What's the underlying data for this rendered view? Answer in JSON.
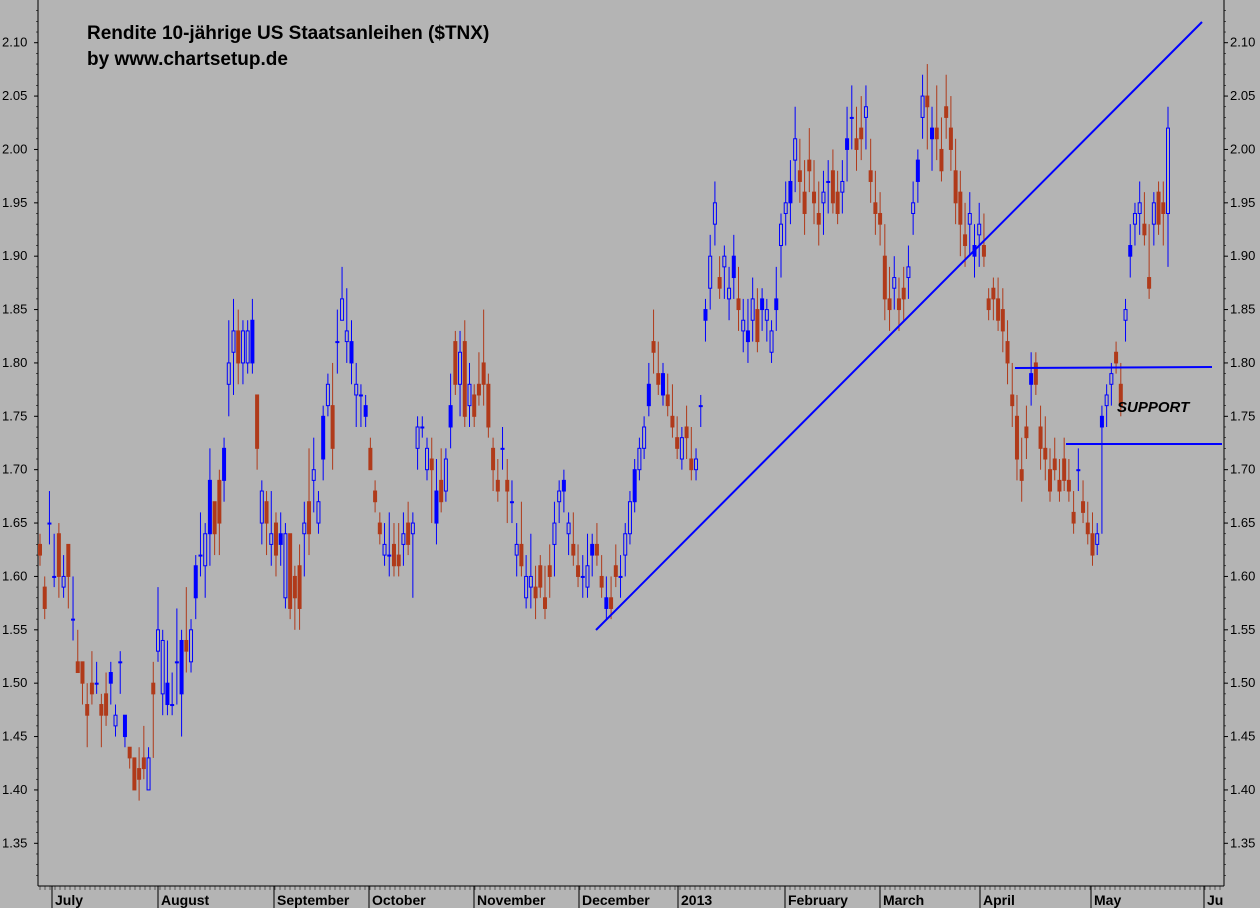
{
  "chart_data": {
    "type": "candlestick",
    "title": "Rendite 10-jährige US Staatsanleihen  ($TNX)",
    "subtitle": "by www.chartsetup.de",
    "ylim": [
      1.31,
      2.14
    ],
    "y_ticks": [
      "1.35",
      "1.40",
      "1.45",
      "1.50",
      "1.55",
      "1.60",
      "1.65",
      "1.70",
      "1.75",
      "1.80",
      "1.85",
      "1.90",
      "1.95",
      "2.00",
      "2.05",
      "2.10"
    ],
    "y_tick_values": [
      1.35,
      1.4,
      1.45,
      1.5,
      1.55,
      1.6,
      1.65,
      1.7,
      1.75,
      1.8,
      1.85,
      1.9,
      1.95,
      2.0,
      2.05,
      2.1
    ],
    "x_months": [
      "July",
      "August",
      "September",
      "October",
      "November",
      "December",
      "2013",
      "February",
      "March",
      "April",
      "May",
      "Ju"
    ],
    "grid": false,
    "colors": {
      "up": "#0000ff",
      "down": "#b03a1a",
      "background": "#b4b4b4",
      "line": "#0000ff"
    },
    "candles": [
      [
        1.63,
        1.64,
        1.61,
        1.62
      ],
      [
        1.59,
        1.6,
        1.56,
        1.57
      ],
      [
        1.65,
        1.68,
        1.63,
        1.65
      ],
      [
        1.6,
        1.64,
        1.59,
        1.6
      ],
      [
        1.64,
        1.65,
        1.58,
        1.6
      ],
      [
        1.59,
        1.62,
        1.58,
        1.6
      ],
      [
        1.63,
        1.63,
        1.57,
        1.6
      ],
      [
        1.56,
        1.6,
        1.54,
        1.56
      ],
      [
        1.52,
        1.55,
        1.51,
        1.51
      ],
      [
        1.52,
        1.52,
        1.48,
        1.5
      ],
      [
        1.48,
        1.5,
        1.44,
        1.47
      ],
      [
        1.5,
        1.53,
        1.48,
        1.49
      ],
      [
        1.5,
        1.52,
        1.49,
        1.5
      ],
      [
        1.48,
        1.49,
        1.44,
        1.47
      ],
      [
        1.49,
        1.51,
        1.46,
        1.47
      ],
      [
        1.5,
        1.52,
        1.48,
        1.51
      ],
      [
        1.46,
        1.48,
        1.45,
        1.47
      ],
      [
        1.52,
        1.53,
        1.49,
        1.52
      ],
      [
        1.45,
        1.47,
        1.44,
        1.47
      ],
      [
        1.44,
        1.44,
        1.42,
        1.43
      ],
      [
        1.43,
        1.43,
        1.4,
        1.4
      ],
      [
        1.42,
        1.44,
        1.39,
        1.41
      ],
      [
        1.43,
        1.46,
        1.41,
        1.42
      ],
      [
        1.4,
        1.44,
        1.4,
        1.43
      ],
      [
        1.5,
        1.52,
        1.43,
        1.49
      ],
      [
        1.53,
        1.59,
        1.52,
        1.55
      ],
      [
        1.49,
        1.55,
        1.47,
        1.54
      ],
      [
        1.48,
        1.54,
        1.47,
        1.5
      ],
      [
        1.48,
        1.51,
        1.47,
        1.48
      ],
      [
        1.52,
        1.57,
        1.48,
        1.52
      ],
      [
        1.49,
        1.55,
        1.45,
        1.54
      ],
      [
        1.54,
        1.59,
        1.51,
        1.53
      ],
      [
        1.52,
        1.56,
        1.51,
        1.55
      ],
      [
        1.58,
        1.62,
        1.56,
        1.61
      ],
      [
        1.62,
        1.66,
        1.6,
        1.62
      ],
      [
        1.61,
        1.65,
        1.58,
        1.64
      ],
      [
        1.64,
        1.72,
        1.61,
        1.69
      ],
      [
        1.67,
        1.67,
        1.62,
        1.64
      ],
      [
        1.69,
        1.7,
        1.62,
        1.65
      ],
      [
        1.69,
        1.73,
        1.67,
        1.72
      ],
      [
        1.78,
        1.84,
        1.75,
        1.8
      ],
      [
        1.81,
        1.86,
        1.77,
        1.83
      ],
      [
        1.83,
        1.85,
        1.78,
        1.8
      ],
      [
        1.8,
        1.84,
        1.78,
        1.83
      ],
      [
        1.8,
        1.84,
        1.79,
        1.83
      ],
      [
        1.8,
        1.86,
        1.79,
        1.84
      ],
      [
        1.77,
        1.77,
        1.7,
        1.72
      ],
      [
        1.65,
        1.69,
        1.63,
        1.68
      ],
      [
        1.67,
        1.68,
        1.62,
        1.65
      ],
      [
        1.63,
        1.68,
        1.61,
        1.64
      ],
      [
        1.65,
        1.66,
        1.6,
        1.62
      ],
      [
        1.63,
        1.66,
        1.61,
        1.64
      ],
      [
        1.58,
        1.65,
        1.57,
        1.64
      ],
      [
        1.64,
        1.64,
        1.56,
        1.57
      ],
      [
        1.6,
        1.61,
        1.55,
        1.58
      ],
      [
        1.61,
        1.63,
        1.55,
        1.57
      ],
      [
        1.64,
        1.67,
        1.6,
        1.65
      ],
      [
        1.67,
        1.72,
        1.62,
        1.64
      ],
      [
        1.69,
        1.73,
        1.66,
        1.7
      ],
      [
        1.65,
        1.68,
        1.64,
        1.67
      ],
      [
        1.71,
        1.76,
        1.69,
        1.75
      ],
      [
        1.76,
        1.79,
        1.75,
        1.78
      ],
      [
        1.76,
        1.8,
        1.7,
        1.72
      ],
      [
        1.82,
        1.85,
        1.79,
        1.82
      ],
      [
        1.84,
        1.89,
        1.84,
        1.86
      ],
      [
        1.82,
        1.87,
        1.8,
        1.83
      ],
      [
        1.8,
        1.84,
        1.78,
        1.82
      ],
      [
        1.77,
        1.8,
        1.74,
        1.78
      ],
      [
        1.77,
        1.78,
        1.74,
        1.77
      ],
      [
        1.75,
        1.77,
        1.74,
        1.76
      ],
      [
        1.72,
        1.73,
        1.7,
        1.7
      ],
      [
        1.68,
        1.69,
        1.66,
        1.67
      ],
      [
        1.65,
        1.66,
        1.63,
        1.64
      ],
      [
        1.62,
        1.65,
        1.61,
        1.63
      ],
      [
        1.62,
        1.66,
        1.6,
        1.62
      ],
      [
        1.63,
        1.65,
        1.6,
        1.61
      ],
      [
        1.62,
        1.65,
        1.6,
        1.61
      ],
      [
        1.63,
        1.66,
        1.61,
        1.64
      ],
      [
        1.65,
        1.67,
        1.62,
        1.63
      ],
      [
        1.64,
        1.66,
        1.58,
        1.65
      ],
      [
        1.72,
        1.75,
        1.7,
        1.74
      ],
      [
        1.74,
        1.75,
        1.73,
        1.74
      ],
      [
        1.7,
        1.73,
        1.69,
        1.72
      ],
      [
        1.71,
        1.73,
        1.65,
        1.7
      ],
      [
        1.65,
        1.71,
        1.63,
        1.68
      ],
      [
        1.69,
        1.72,
        1.66,
        1.67
      ],
      [
        1.68,
        1.72,
        1.67,
        1.71
      ],
      [
        1.74,
        1.79,
        1.72,
        1.76
      ],
      [
        1.82,
        1.83,
        1.77,
        1.78
      ],
      [
        1.78,
        1.83,
        1.75,
        1.81
      ],
      [
        1.82,
        1.84,
        1.74,
        1.75
      ],
      [
        1.76,
        1.8,
        1.74,
        1.78
      ],
      [
        1.77,
        1.78,
        1.74,
        1.75
      ],
      [
        1.78,
        1.81,
        1.76,
        1.77
      ],
      [
        1.8,
        1.85,
        1.76,
        1.78
      ],
      [
        1.78,
        1.79,
        1.73,
        1.74
      ],
      [
        1.72,
        1.73,
        1.68,
        1.7
      ],
      [
        1.69,
        1.71,
        1.67,
        1.68
      ],
      [
        1.72,
        1.74,
        1.7,
        1.72
      ],
      [
        1.69,
        1.71,
        1.65,
        1.68
      ],
      [
        1.67,
        1.69,
        1.65,
        1.67
      ],
      [
        1.62,
        1.65,
        1.6,
        1.63
      ],
      [
        1.63,
        1.67,
        1.6,
        1.61
      ],
      [
        1.58,
        1.62,
        1.57,
        1.6
      ],
      [
        1.59,
        1.64,
        1.57,
        1.6
      ],
      [
        1.59,
        1.61,
        1.56,
        1.58
      ],
      [
        1.61,
        1.62,
        1.58,
        1.59
      ],
      [
        1.58,
        1.61,
        1.56,
        1.57
      ],
      [
        1.61,
        1.63,
        1.58,
        1.6
      ],
      [
        1.63,
        1.67,
        1.6,
        1.65
      ],
      [
        1.67,
        1.69,
        1.65,
        1.68
      ],
      [
        1.68,
        1.7,
        1.66,
        1.69
      ],
      [
        1.64,
        1.66,
        1.62,
        1.65
      ],
      [
        1.63,
        1.66,
        1.61,
        1.62
      ],
      [
        1.61,
        1.63,
        1.59,
        1.6
      ],
      [
        1.6,
        1.62,
        1.58,
        1.6
      ],
      [
        1.59,
        1.64,
        1.58,
        1.61
      ],
      [
        1.62,
        1.64,
        1.6,
        1.63
      ],
      [
        1.63,
        1.65,
        1.61,
        1.62
      ],
      [
        1.6,
        1.62,
        1.58,
        1.59
      ],
      [
        1.57,
        1.6,
        1.56,
        1.58
      ],
      [
        1.58,
        1.6,
        1.56,
        1.57
      ],
      [
        1.61,
        1.63,
        1.59,
        1.6
      ],
      [
        1.6,
        1.62,
        1.58,
        1.6
      ],
      [
        1.62,
        1.65,
        1.6,
        1.64
      ],
      [
        1.64,
        1.68,
        1.63,
        1.67
      ],
      [
        1.67,
        1.71,
        1.66,
        1.7
      ],
      [
        1.7,
        1.73,
        1.69,
        1.72
      ],
      [
        1.72,
        1.75,
        1.71,
        1.74
      ],
      [
        1.76,
        1.8,
        1.75,
        1.78
      ],
      [
        1.82,
        1.85,
        1.79,
        1.81
      ],
      [
        1.79,
        1.82,
        1.77,
        1.78
      ],
      [
        1.77,
        1.8,
        1.76,
        1.79
      ],
      [
        1.77,
        1.79,
        1.75,
        1.76
      ],
      [
        1.75,
        1.78,
        1.73,
        1.74
      ],
      [
        1.73,
        1.75,
        1.71,
        1.72
      ],
      [
        1.71,
        1.74,
        1.7,
        1.73
      ],
      [
        1.74,
        1.76,
        1.71,
        1.73
      ],
      [
        1.71,
        1.74,
        1.69,
        1.7
      ],
      [
        1.7,
        1.72,
        1.69,
        1.71
      ],
      [
        1.76,
        1.77,
        1.74,
        1.76
      ],
      [
        1.84,
        1.86,
        1.82,
        1.85
      ],
      [
        1.87,
        1.92,
        1.85,
        1.9
      ],
      [
        1.93,
        1.97,
        1.91,
        1.95
      ],
      [
        1.88,
        1.9,
        1.86,
        1.87
      ],
      [
        1.89,
        1.91,
        1.86,
        1.9
      ],
      [
        1.86,
        1.89,
        1.84,
        1.87
      ],
      [
        1.88,
        1.92,
        1.86,
        1.9
      ],
      [
        1.86,
        1.89,
        1.83,
        1.85
      ],
      [
        1.83,
        1.86,
        1.81,
        1.84
      ],
      [
        1.82,
        1.86,
        1.8,
        1.83
      ],
      [
        1.84,
        1.88,
        1.82,
        1.86
      ],
      [
        1.85,
        1.87,
        1.81,
        1.82
      ],
      [
        1.85,
        1.87,
        1.83,
        1.86
      ],
      [
        1.84,
        1.86,
        1.82,
        1.85
      ],
      [
        1.81,
        1.84,
        1.8,
        1.83
      ],
      [
        1.85,
        1.89,
        1.83,
        1.86
      ],
      [
        1.91,
        1.94,
        1.88,
        1.93
      ],
      [
        1.94,
        1.97,
        1.91,
        1.95
      ],
      [
        1.95,
        1.99,
        1.93,
        1.97
      ],
      [
        1.99,
        2.04,
        1.96,
        2.01
      ],
      [
        1.98,
        2.01,
        1.95,
        1.97
      ],
      [
        1.96,
        1.99,
        1.92,
        1.94
      ],
      [
        1.99,
        2.02,
        1.96,
        1.98
      ],
      [
        1.96,
        1.99,
        1.93,
        1.95
      ],
      [
        1.94,
        1.97,
        1.91,
        1.93
      ],
      [
        1.95,
        1.98,
        1.92,
        1.96
      ],
      [
        1.97,
        1.99,
        1.94,
        1.97
      ],
      [
        1.98,
        2.0,
        1.94,
        1.95
      ],
      [
        1.96,
        1.98,
        1.93,
        1.94
      ],
      [
        1.96,
        1.99,
        1.94,
        1.97
      ],
      [
        2.0,
        2.04,
        1.97,
        2.01
      ],
      [
        2.03,
        2.06,
        2.0,
        2.03
      ],
      [
        2.01,
        2.04,
        1.98,
        2.0
      ],
      [
        2.02,
        2.05,
        1.99,
        2.01
      ],
      [
        2.03,
        2.06,
        2.0,
        2.04
      ],
      [
        1.98,
        2.01,
        1.95,
        1.97
      ],
      [
        1.95,
        1.98,
        1.92,
        1.94
      ],
      [
        1.94,
        1.96,
        1.91,
        1.93
      ],
      [
        1.9,
        1.93,
        1.84,
        1.86
      ],
      [
        1.86,
        1.89,
        1.83,
        1.85
      ],
      [
        1.87,
        1.9,
        1.85,
        1.88
      ],
      [
        1.86,
        1.88,
        1.83,
        1.85
      ],
      [
        1.87,
        1.89,
        1.84,
        1.86
      ],
      [
        1.88,
        1.91,
        1.86,
        1.89
      ],
      [
        1.94,
        1.97,
        1.92,
        1.95
      ],
      [
        1.97,
        2.0,
        1.95,
        1.99
      ],
      [
        2.03,
        2.07,
        2.01,
        2.05
      ],
      [
        2.05,
        2.08,
        2.0,
        2.04
      ],
      [
        2.01,
        2.04,
        1.98,
        2.02
      ],
      [
        2.02,
        2.06,
        1.99,
        2.01
      ],
      [
        2.0,
        2.03,
        1.97,
        1.98
      ],
      [
        2.04,
        2.07,
        2.01,
        2.03
      ],
      [
        2.02,
        2.05,
        1.98,
        2.0
      ],
      [
        1.98,
        2.01,
        1.93,
        1.95
      ],
      [
        1.96,
        1.98,
        1.9,
        1.93
      ],
      [
        1.92,
        1.95,
        1.89,
        1.91
      ],
      [
        1.93,
        1.96,
        1.9,
        1.94
      ],
      [
        1.9,
        1.93,
        1.88,
        1.91
      ],
      [
        1.92,
        1.95,
        1.89,
        1.93
      ],
      [
        1.91,
        1.94,
        1.89,
        1.9
      ],
      [
        1.86,
        1.87,
        1.84,
        1.85
      ],
      [
        1.87,
        1.88,
        1.84,
        1.86
      ],
      [
        1.86,
        1.88,
        1.83,
        1.84
      ],
      [
        1.85,
        1.87,
        1.81,
        1.83
      ],
      [
        1.82,
        1.84,
        1.78,
        1.8
      ],
      [
        1.77,
        1.8,
        1.74,
        1.76
      ],
      [
        1.75,
        1.77,
        1.69,
        1.71
      ],
      [
        1.7,
        1.73,
        1.67,
        1.69
      ],
      [
        1.74,
        1.76,
        1.71,
        1.73
      ],
      [
        1.78,
        1.81,
        1.76,
        1.79
      ],
      [
        1.8,
        1.81,
        1.77,
        1.78
      ],
      [
        1.74,
        1.76,
        1.7,
        1.72
      ],
      [
        1.72,
        1.75,
        1.69,
        1.71
      ],
      [
        1.7,
        1.72,
        1.67,
        1.68
      ],
      [
        1.71,
        1.73,
        1.69,
        1.7
      ],
      [
        1.69,
        1.71,
        1.67,
        1.68
      ],
      [
        1.71,
        1.73,
        1.68,
        1.69
      ],
      [
        1.69,
        1.71,
        1.67,
        1.68
      ],
      [
        1.66,
        1.68,
        1.64,
        1.65
      ],
      [
        1.7,
        1.72,
        1.68,
        1.7
      ],
      [
        1.67,
        1.69,
        1.65,
        1.66
      ],
      [
        1.65,
        1.67,
        1.63,
        1.64
      ],
      [
        1.64,
        1.66,
        1.61,
        1.62
      ],
      [
        1.63,
        1.65,
        1.62,
        1.64
      ],
      [
        1.74,
        1.76,
        1.64,
        1.75
      ],
      [
        1.76,
        1.78,
        1.74,
        1.77
      ],
      [
        1.78,
        1.8,
        1.76,
        1.79
      ],
      [
        1.81,
        1.82,
        1.79,
        1.8
      ],
      [
        1.78,
        1.8,
        1.75,
        1.76
      ],
      [
        1.84,
        1.86,
        1.82,
        1.85
      ],
      [
        1.9,
        1.93,
        1.88,
        1.91
      ],
      [
        1.93,
        1.95,
        1.91,
        1.94
      ],
      [
        1.94,
        1.97,
        1.92,
        1.95
      ],
      [
        1.93,
        1.96,
        1.91,
        1.92
      ],
      [
        1.88,
        1.93,
        1.86,
        1.87
      ],
      [
        1.93,
        1.96,
        1.91,
        1.95
      ],
      [
        1.96,
        1.97,
        1.92,
        1.93
      ],
      [
        1.95,
        1.97,
        1.91,
        1.94
      ],
      [
        1.94,
        2.04,
        1.89,
        2.02
      ]
    ],
    "overlays": {
      "support_label": "SUPPORT"
    }
  }
}
